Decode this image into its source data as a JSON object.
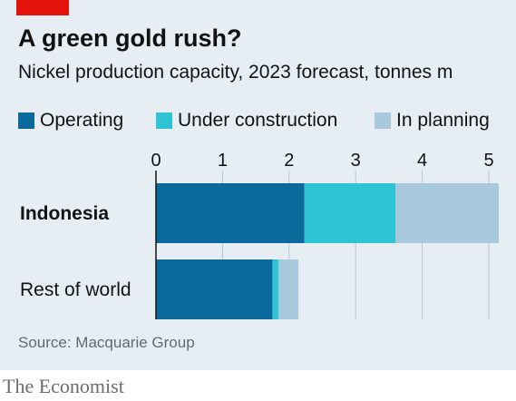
{
  "header": {
    "title": "A green gold rush?",
    "subtitle": "Nickel production capacity, 2023 forecast, tonnes m"
  },
  "legend": [
    {
      "label": "Operating",
      "color": "#0b6a9c"
    },
    {
      "label": "Under construction",
      "color": "#2fc3d6"
    },
    {
      "label": "In planning",
      "color": "#a8c9db"
    }
  ],
  "chart_data": {
    "type": "bar",
    "orientation": "horizontal",
    "stacked": true,
    "categories": [
      "Indonesia",
      "Rest of world"
    ],
    "category_bold": [
      true,
      false
    ],
    "series": [
      {
        "name": "Operating",
        "color": "#0b6a9c",
        "values": [
          2.23,
          1.75
        ]
      },
      {
        "name": "Under construction",
        "color": "#2fc3d6",
        "values": [
          1.37,
          0.09
        ]
      },
      {
        "name": "In planning",
        "color": "#a8c9db",
        "values": [
          1.55,
          0.3
        ]
      }
    ],
    "xlim": [
      0,
      5
    ],
    "xticks": [
      "0",
      "1",
      "2",
      "3",
      "4",
      "5"
    ],
    "grid": true,
    "legend_position": "top"
  },
  "footer": {
    "source": "Source: Macquarie Group",
    "brand": "The Economist"
  }
}
